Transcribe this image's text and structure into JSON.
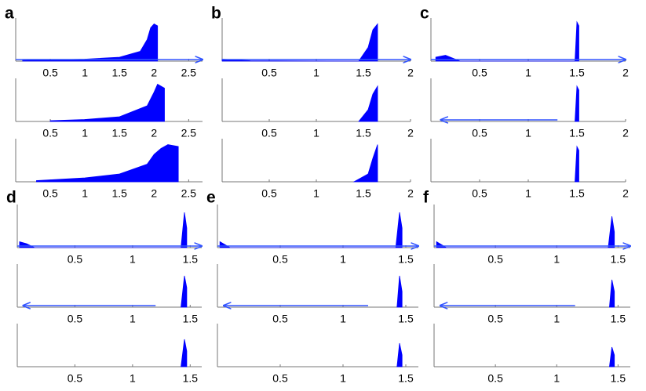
{
  "chart_data": [
    {
      "type": "area",
      "title": "a",
      "color": "#0000ff",
      "xlim": [
        0,
        2.7
      ],
      "xticks": [
        0.5,
        1,
        1.5,
        2,
        2.5
      ],
      "subplots": [
        {
          "x": [
            0.1,
            0.5,
            1,
            1.5,
            1.8,
            1.9,
            1.95,
            2.0,
            2.05
          ],
          "values": [
            0.02,
            0.03,
            0.05,
            0.1,
            0.25,
            0.55,
            0.85,
            0.95,
            0.9
          ],
          "arrow": [
            0,
            2.7
          ]
        },
        {
          "x": [
            0.5,
            1,
            1.5,
            1.9,
            2.0,
            2.05,
            2.1,
            2.15
          ],
          "values": [
            0.02,
            0.05,
            0.12,
            0.4,
            0.75,
            0.95,
            0.9,
            0.85
          ]
        },
        {
          "x": [
            0.3,
            1,
            1.5,
            1.9,
            2.0,
            2.1,
            2.2,
            2.35
          ],
          "values": [
            0.03,
            0.1,
            0.2,
            0.45,
            0.7,
            0.85,
            0.95,
            0.9
          ]
        }
      ]
    },
    {
      "type": "area",
      "title": "b",
      "color": "#0000ff",
      "xlim": [
        0,
        2
      ],
      "xticks": [
        0.5,
        1,
        1.5,
        2
      ],
      "subplots": [
        {
          "x": [
            0,
            0.3,
            1.45,
            1.55,
            1.6,
            1.65
          ],
          "values": [
            0.05,
            0.01,
            0,
            0.35,
            0.8,
            0.95
          ],
          "arrow": [
            0,
            2
          ]
        },
        {
          "x": [
            1.45,
            1.55,
            1.6,
            1.65
          ],
          "values": [
            0,
            0.3,
            0.7,
            0.9
          ]
        },
        {
          "x": [
            1.4,
            1.55,
            1.6,
            1.65
          ],
          "values": [
            0,
            0.2,
            0.6,
            0.95
          ]
        }
      ]
    },
    {
      "type": "area",
      "title": "c",
      "color": "#0000ff",
      "xlim": [
        0,
        2
      ],
      "xticks": [
        0.5,
        1,
        1.5,
        2
      ],
      "subplots": [
        {
          "x": [
            0.05,
            0.15,
            0.3,
            1.48,
            1.5,
            1.52
          ],
          "values": [
            0.1,
            0.15,
            0,
            0,
            1.0,
            0.9
          ],
          "arrow": [
            0,
            2
          ]
        },
        {
          "x": [
            1.48,
            1.5,
            1.52
          ],
          "values": [
            0,
            0.9,
            0.8
          ],
          "arrow": [
            1.3,
            0.1
          ]
        },
        {
          "x": [
            1.48,
            1.5,
            1.52
          ],
          "values": [
            0,
            0.9,
            0.8
          ]
        }
      ]
    },
    {
      "type": "area",
      "title": "d",
      "color": "#0000ff",
      "xlim": [
        0,
        1.6
      ],
      "xticks": [
        0.5,
        1,
        1.5
      ],
      "subplots": [
        {
          "x": [
            0.02,
            0.08,
            0.15,
            1.42,
            1.45,
            1.47
          ],
          "values": [
            0.15,
            0.1,
            0,
            0,
            0.9,
            0.5
          ],
          "arrow": [
            0,
            1.6
          ]
        },
        {
          "x": [
            1.42,
            1.45,
            1.47
          ],
          "values": [
            0,
            0.8,
            0.5
          ],
          "arrow": [
            1.2,
            0.05
          ]
        },
        {
          "x": [
            1.42,
            1.45,
            1.47
          ],
          "values": [
            0,
            0.7,
            0.4
          ]
        }
      ]
    },
    {
      "type": "area",
      "title": "e",
      "color": "#0000ff",
      "xlim": [
        0,
        1.6
      ],
      "xticks": [
        0.5,
        1,
        1.5
      ],
      "subplots": [
        {
          "x": [
            0.02,
            0.1,
            1.42,
            1.45,
            1.47
          ],
          "values": [
            0.15,
            0,
            0,
            0.9,
            0.5
          ],
          "arrow": [
            0,
            1.6
          ]
        },
        {
          "x": [
            1.43,
            1.45,
            1.47
          ],
          "values": [
            0,
            0.8,
            0.4
          ],
          "arrow": [
            1.2,
            0.05
          ]
        },
        {
          "x": [
            1.43,
            1.45,
            1.47
          ],
          "values": [
            0,
            0.6,
            0.3
          ]
        }
      ]
    },
    {
      "type": "area",
      "title": "f",
      "color": "#0000ff",
      "xlim": [
        0,
        1.6
      ],
      "xticks": [
        0.5,
        1,
        1.5
      ],
      "subplots": [
        {
          "x": [
            0.02,
            0.1,
            1.42,
            1.45,
            1.47
          ],
          "values": [
            0.15,
            0,
            0,
            0.8,
            0.4
          ],
          "arrow": [
            0,
            1.6
          ]
        },
        {
          "x": [
            1.43,
            1.45,
            1.47
          ],
          "values": [
            0,
            0.7,
            0.4
          ],
          "arrow": [
            1.15,
            0.05
          ]
        },
        {
          "x": [
            1.43,
            1.45,
            1.47
          ],
          "values": [
            0,
            0.5,
            0.3
          ]
        }
      ]
    }
  ]
}
